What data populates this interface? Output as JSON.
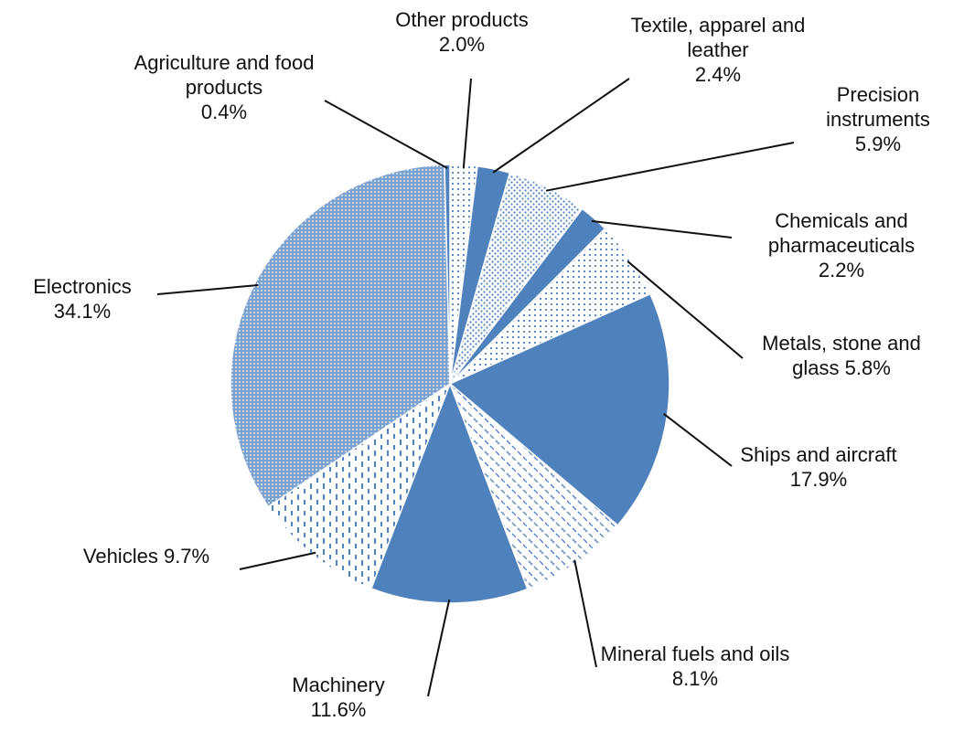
{
  "chart_data": {
    "type": "pie",
    "categories": [
      "Other products",
      "Textile, apparel and leather",
      "Precision instruments",
      "Chemicals and pharmaceuticals",
      "Metals, stone and glass",
      "Ships and aircraft",
      "Mineral fuels and oils",
      "Machinery",
      "Vehicles",
      "Electronics",
      "Agriculture and food products"
    ],
    "values": [
      2.0,
      2.4,
      5.9,
      2.2,
      5.8,
      17.9,
      8.1,
      11.6,
      9.7,
      34.1,
      0.4
    ],
    "value_labels": [
      "2.0%",
      "2.4%",
      "5.9%",
      "2.2%",
      "5.8%",
      "17.9%",
      "8.1%",
      "11.6%",
      "9.7%",
      "34.1%",
      "0.4%"
    ],
    "color": "#4f81bd"
  }
}
